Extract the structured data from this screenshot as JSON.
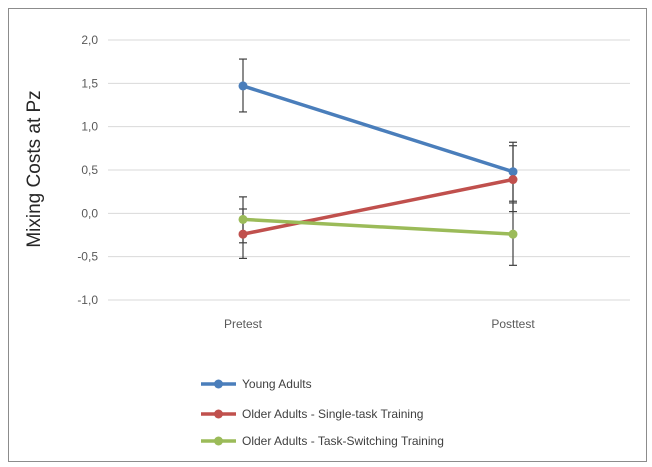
{
  "chart_data": {
    "type": "line",
    "title": "",
    "xlabel": "",
    "ylabel": "Mixing Costs at Pz",
    "categories": [
      "Pretest",
      "Posttest"
    ],
    "ylim": [
      -1.0,
      2.0
    ],
    "yticks": [
      "2,0",
      "1,5",
      "1,0",
      "0,5",
      "0,0",
      "-0,5",
      "-1,0"
    ],
    "ytick_values": [
      2.0,
      1.5,
      1.0,
      0.5,
      0.0,
      -0.5,
      -1.0
    ],
    "grid": true,
    "legend_position": "bottom-left",
    "series": [
      {
        "name": "Young Adults",
        "color": "#4a7ebb",
        "values": [
          1.47,
          0.48
        ],
        "error": [
          [
            1.17,
            1.78
          ],
          [
            0.14,
            0.82
          ]
        ]
      },
      {
        "name": "Older Adults - Single-task Training",
        "color": "#c0504d",
        "values": [
          -0.24,
          0.39
        ],
        "error": [
          [
            -0.52,
            0.05
          ],
          [
            0.02,
            0.78
          ]
        ]
      },
      {
        "name": "Older Adults - Task-Switching Training",
        "color": "#9bbb59",
        "values": [
          -0.07,
          -0.24
        ],
        "error": [
          [
            -0.34,
            0.19
          ],
          [
            -0.6,
            0.12
          ]
        ]
      }
    ]
  }
}
